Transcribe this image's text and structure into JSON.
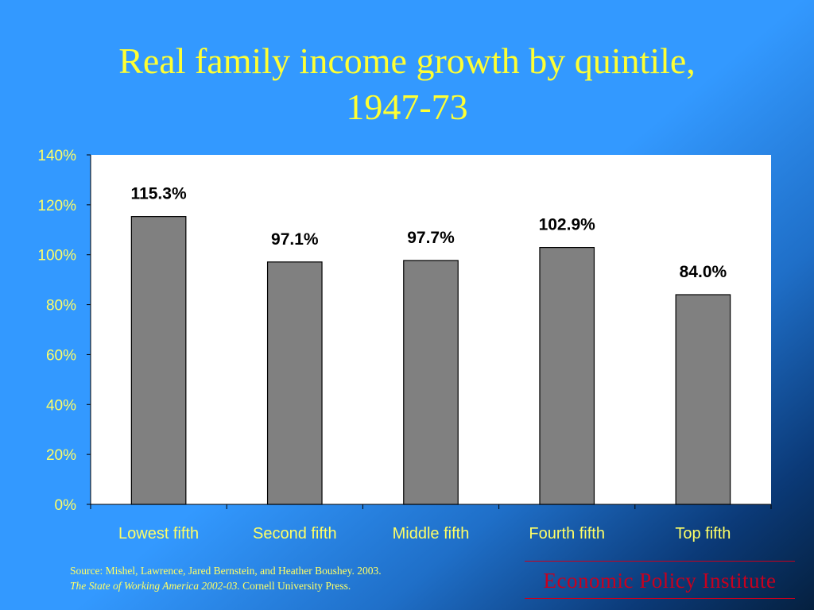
{
  "chart_data": {
    "type": "bar",
    "title_line1": "Real family income growth by quintile,",
    "title_line2": "1947-73",
    "categories": [
      "Lowest fifth",
      "Second fifth",
      "Middle fifth",
      "Fourth fifth",
      "Top fifth"
    ],
    "values": [
      115.3,
      97.1,
      97.7,
      102.9,
      84.0
    ],
    "data_labels": [
      "115.3%",
      "97.1%",
      "97.7%",
      "102.9%",
      "84.0%"
    ],
    "y_ticks": [
      "0%",
      "20%",
      "40%",
      "60%",
      "80%",
      "100%",
      "120%",
      "140%"
    ],
    "ylim": [
      0,
      140
    ],
    "grid": false,
    "colors": {
      "bar": "#808080",
      "plot_background": "#ffffff",
      "title": "#ffff33",
      "labels": "#ffff66"
    }
  },
  "footer": {
    "source_line1": "Source:  Mishel, Lawrence, Jared Bernstein, and Heather Boushey. 2003.",
    "source_line2_italic": "The State of Working America 2002-03.",
    "source_line2_rest": " Cornell University Press.",
    "logo_text": "Economic Policy Institute"
  }
}
